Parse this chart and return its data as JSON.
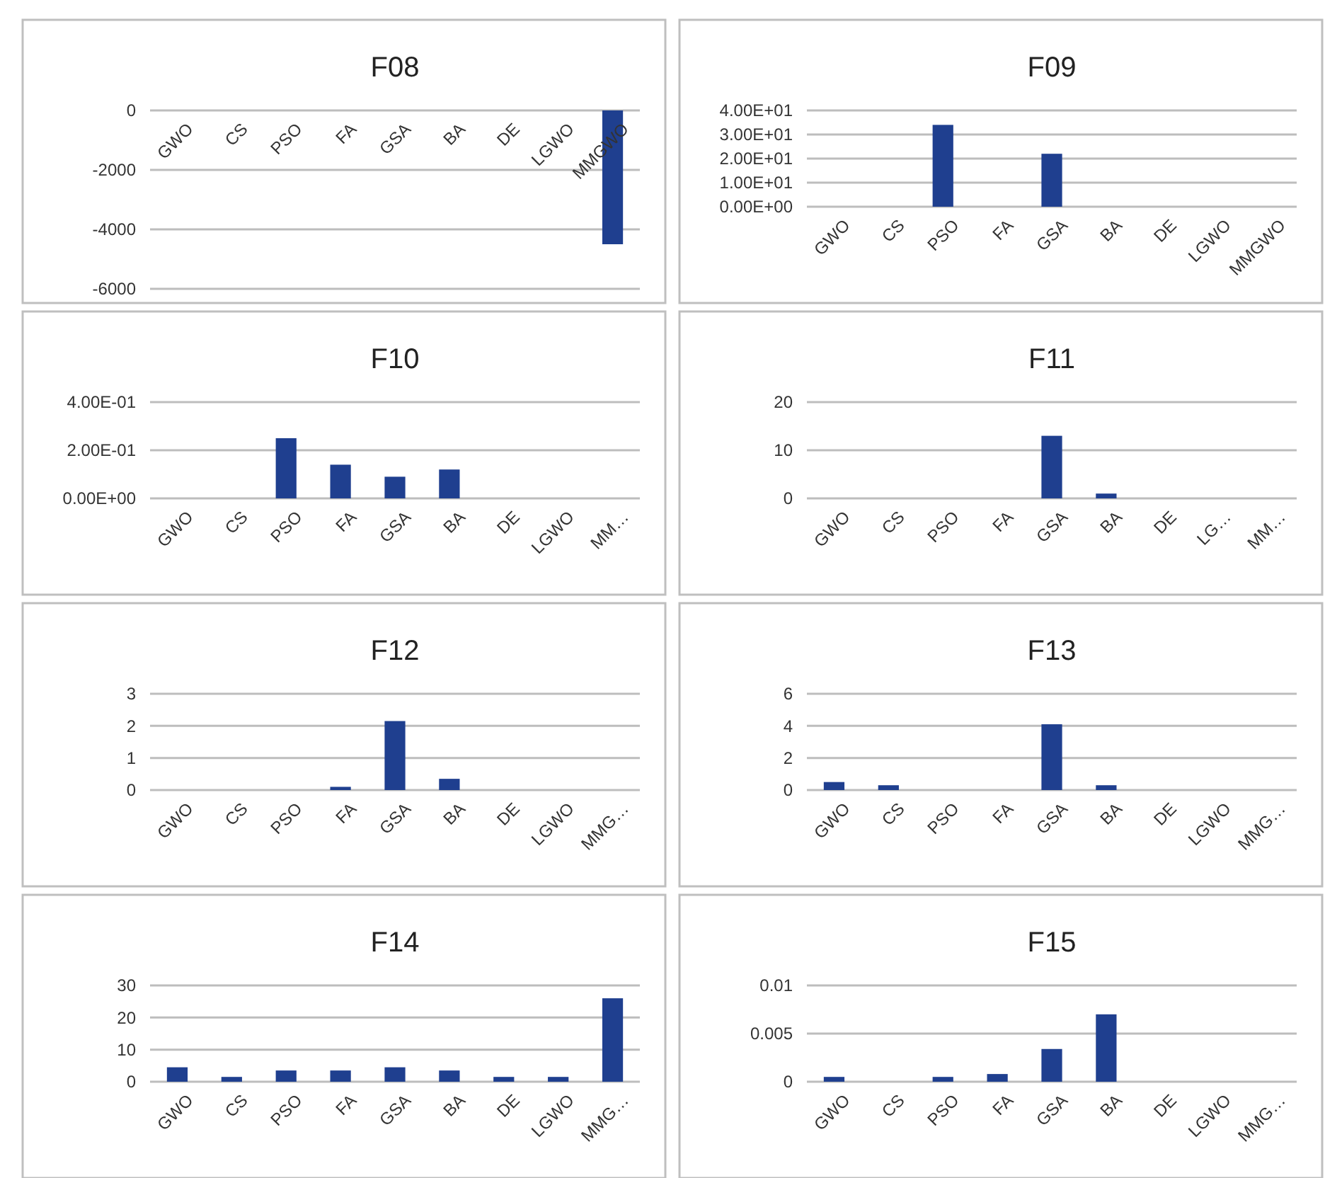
{
  "chart_data": [
    {
      "type": "bar",
      "title": "F08",
      "categories": [
        "GWO",
        "CS",
        "PSO",
        "FA",
        "GSA",
        "BA",
        "DE",
        "LGWO",
        "MMGWO"
      ],
      "values": [
        0,
        0,
        0,
        0,
        0,
        0,
        0,
        0,
        -4500
      ],
      "color": "#1f3f8f",
      "ylim": [
        -6000,
        0
      ],
      "yticks": [
        -6000,
        -4000,
        -2000,
        0
      ],
      "grid": "y"
    },
    {
      "type": "bar",
      "title": "F09",
      "categories": [
        "GWO",
        "CS",
        "PSO",
        "FA",
        "GSA",
        "BA",
        "DE",
        "LGWO",
        "MMGWO"
      ],
      "values": [
        0,
        0,
        34,
        0,
        22,
        0,
        0,
        0,
        0
      ],
      "color": "#1f3f8f",
      "ylim": [
        0,
        40
      ],
      "yticks": [
        {
          "value": 0,
          "label": "0.00E+00"
        },
        {
          "value": 10,
          "label": "1.00E+01"
        },
        {
          "value": 20,
          "label": "2.00E+01"
        },
        {
          "value": 30,
          "label": "3.00E+01"
        },
        {
          "value": 40,
          "label": "4.00E+01"
        }
      ],
      "grid": "y"
    },
    {
      "type": "bar",
      "title": "F10",
      "categories": [
        "GWO",
        "CS",
        "PSO",
        "FA",
        "GSA",
        "BA",
        "DE",
        "LGWO",
        "MM…"
      ],
      "values": [
        0,
        0,
        0.25,
        0.14,
        0.09,
        0.12,
        0,
        0,
        0
      ],
      "color": "#1f3f8f",
      "ylim": [
        0,
        0.4
      ],
      "yticks": [
        {
          "value": 0,
          "label": "0.00E+00"
        },
        {
          "value": 0.2,
          "label": "2.00E-01"
        },
        {
          "value": 0.4,
          "label": "4.00E-01"
        }
      ],
      "grid": "y"
    },
    {
      "type": "bar",
      "title": "F11",
      "categories": [
        "GWO",
        "CS",
        "PSO",
        "FA",
        "GSA",
        "BA",
        "DE",
        "LG…",
        "MM…"
      ],
      "values": [
        0,
        0,
        0,
        0,
        13,
        1,
        0,
        0,
        0
      ],
      "color": "#1f3f8f",
      "ylim": [
        0,
        20
      ],
      "yticks": [
        0,
        10,
        20
      ],
      "grid": "y"
    },
    {
      "type": "bar",
      "title": "F12",
      "categories": [
        "GWO",
        "CS",
        "PSO",
        "FA",
        "GSA",
        "BA",
        "DE",
        "LGWO",
        "MMG…"
      ],
      "values": [
        0,
        0,
        0,
        0.1,
        2.15,
        0.35,
        0,
        0,
        0
      ],
      "color": "#1f3f8f",
      "ylim": [
        0,
        3
      ],
      "yticks": [
        0,
        1,
        2,
        3
      ],
      "grid": "y"
    },
    {
      "type": "bar",
      "title": "F13",
      "categories": [
        "GWO",
        "CS",
        "PSO",
        "FA",
        "GSA",
        "BA",
        "DE",
        "LGWO",
        "MMG…"
      ],
      "values": [
        0.5,
        0.3,
        0,
        0,
        4.1,
        0.3,
        0,
        0,
        0
      ],
      "color": "#1f3f8f",
      "ylim": [
        0,
        6
      ],
      "yticks": [
        0,
        2,
        4,
        6
      ],
      "grid": "y"
    },
    {
      "type": "bar",
      "title": "F14",
      "categories": [
        "GWO",
        "CS",
        "PSO",
        "FA",
        "GSA",
        "BA",
        "DE",
        "LGWO",
        "MMG…"
      ],
      "values": [
        4.5,
        1.5,
        3.5,
        3.5,
        4.5,
        3.5,
        1.5,
        1.5,
        26
      ],
      "color": "#1f3f8f",
      "ylim": [
        0,
        30
      ],
      "yticks": [
        0,
        10,
        20,
        30
      ],
      "grid": "y"
    },
    {
      "type": "bar",
      "title": "F15",
      "categories": [
        "GWO",
        "CS",
        "PSO",
        "FA",
        "GSA",
        "BA",
        "DE",
        "LGWO",
        "MMG…"
      ],
      "values": [
        0.0005,
        0,
        0.0005,
        0.0008,
        0.0034,
        0.007,
        0,
        0,
        0
      ],
      "color": "#1f3f8f",
      "ylim": [
        0,
        0.01
      ],
      "yticks": [
        0,
        0.005,
        0.01
      ],
      "grid": "y"
    }
  ]
}
